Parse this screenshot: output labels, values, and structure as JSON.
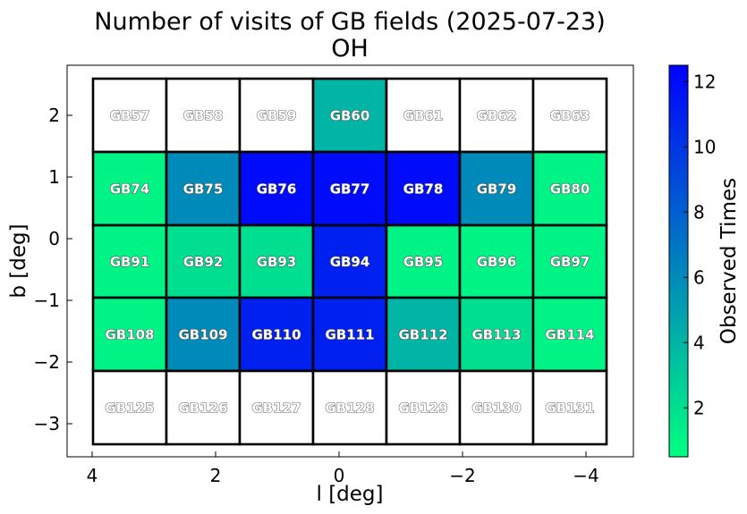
{
  "chart_data": {
    "type": "heatmap",
    "title": "Number of visits of GB fields (2025-07-23)",
    "subtitle": "OH",
    "xlabel": "l [deg]",
    "ylabel": "b [deg]",
    "colorbar_label": "Observed Times",
    "xlim": [
      4.4,
      -4.8
    ],
    "ylim": [
      -3.5,
      2.75
    ],
    "xticks": [
      4,
      2,
      0,
      -2,
      -4
    ],
    "yticks": [
      2,
      1,
      0,
      -1,
      -2,
      -3
    ],
    "xtick_labels": [
      "4",
      "2",
      "0",
      "−2",
      "−4"
    ],
    "ytick_labels": [
      "2",
      "1",
      "0",
      "−1",
      "−2",
      "−3"
    ],
    "colorbar_range": [
      0.5,
      12.5
    ],
    "colorbar_ticks": [
      2,
      4,
      6,
      8,
      10,
      12
    ],
    "colorbar_tick_labels": [
      "2",
      "4",
      "6",
      "8",
      "10",
      "12"
    ],
    "colormap": "winter_r",
    "colormap_low": "#00ff80",
    "colormap_high": "#0000ff",
    "unobserved_color": "#ffffff",
    "grid": false,
    "column_l_edges": [
      3.97,
      2.76,
      1.55,
      0.34,
      -0.87,
      -2.08,
      -3.29,
      -4.5
    ],
    "row_b_edges": [
      2.6,
      1.48,
      0.36,
      -0.76,
      -1.88,
      -3.0
    ],
    "row_b_edges_corrected": [
      2.6,
      1.48,
      0.36,
      -0.76,
      -1.88,
      -3.0
    ],
    "fields": [
      [
        "GB57",
        "GB58",
        "GB59",
        "GB60",
        "GB61",
        "GB62",
        "GB63"
      ],
      [
        "GB74",
        "GB75",
        "GB76",
        "GB77",
        "GB78",
        "GB79",
        "GB80"
      ],
      [
        "GB91",
        "GB92",
        "GB93",
        "GB94",
        "GB95",
        "GB96",
        "GB97"
      ],
      [
        "GB108",
        "GB109",
        "GB110",
        "GB111",
        "GB112",
        "GB113",
        "GB114"
      ],
      [
        "GB125",
        "GB126",
        "GB127",
        "GB128",
        "GB129",
        "GB130",
        "GB131"
      ]
    ],
    "visits": [
      [
        0,
        0,
        0,
        4,
        0,
        0,
        0
      ],
      [
        1,
        6,
        12,
        12,
        12,
        6,
        1
      ],
      [
        1,
        2,
        2,
        11,
        1,
        1,
        1
      ],
      [
        1,
        6,
        11,
        11,
        4,
        2,
        1
      ],
      [
        0,
        0,
        0,
        0,
        0,
        0,
        0
      ]
    ]
  }
}
